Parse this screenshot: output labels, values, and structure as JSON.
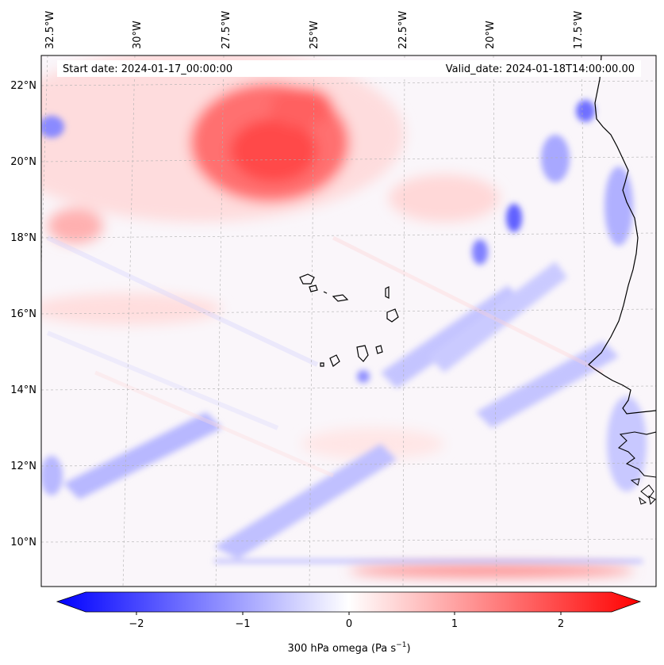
{
  "map": {
    "start_date": "Start date: 2024-01-17_00:00:00",
    "valid_date": "Valid_date: 2024-01-18T14:00:00.00",
    "lon_labels": [
      "32.5°W",
      "30°W",
      "27.5°W",
      "25°W",
      "22.5°W",
      "20°W",
      "17.5°W"
    ],
    "lat_labels": [
      "22°N",
      "20°N",
      "18°N",
      "16°N",
      "14°N",
      "12°N",
      "10°N"
    ],
    "colors": {
      "negative": "#0000ff",
      "zero": "#ffffff",
      "positive": "#ff0000",
      "coast": "#000000",
      "grid": "#b0b0b0"
    }
  },
  "colorbar": {
    "label_prefix": "300 hPa omega (Pa s",
    "label_exp": "−1",
    "label_suffix": ")",
    "ticks": [
      "−2",
      "−1",
      "0",
      "1",
      "2"
    ],
    "range": [
      -2.7,
      2.7
    ]
  }
}
